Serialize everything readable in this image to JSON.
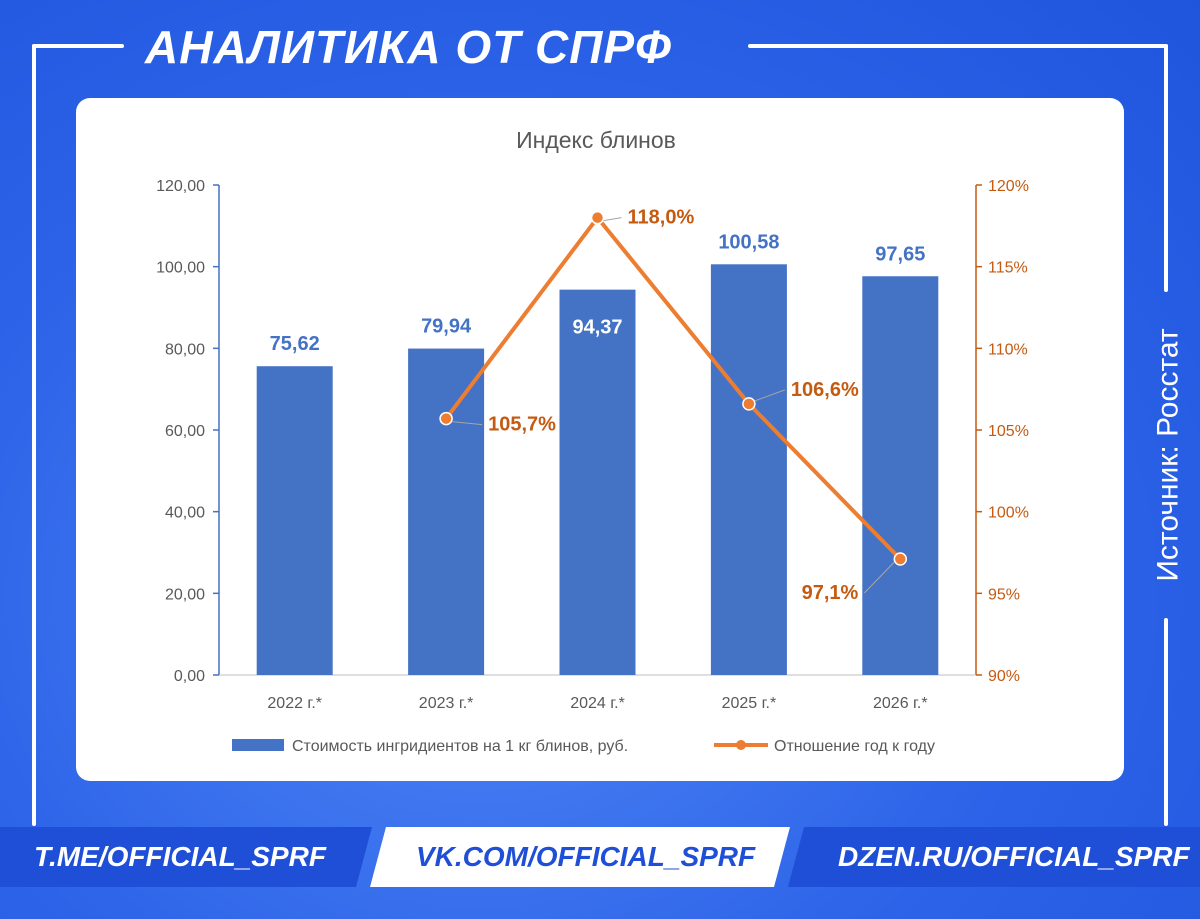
{
  "header": {
    "title": "АНАЛИТИКА ОТ СПРФ"
  },
  "source_label": "Источник: Росстат",
  "footer": {
    "links": [
      "T.ME/OFFICIAL_SPRF",
      "VK.COM/OFFICIAL_SPRF",
      "DZEN.RU/OFFICIAL_SPRF"
    ]
  },
  "colors": {
    "background": "#2c63e8",
    "bar": "#4472c4",
    "line": "#ed7d31",
    "bar_label": "#4472c4",
    "line_label": "#c55a11",
    "axis_left": "#4472c4",
    "axis_right": "#c55a11"
  },
  "chart_data": {
    "type": "bar+line",
    "title": "Индекс блинов",
    "categories": [
      "2022 г.*",
      "2023 г.*",
      "2024 г.*",
      "2025 г.*",
      "2026 г.*"
    ],
    "series": [
      {
        "name": "Стоимость ингридиентов на 1 кг блинов, руб.",
        "type": "bar",
        "axis": "left",
        "values": [
          75.62,
          79.94,
          94.37,
          100.58,
          97.65
        ],
        "labels": [
          "75,62",
          "79,94",
          "94,37",
          "100,58",
          "97,65"
        ]
      },
      {
        "name": "Отношение год к году",
        "type": "line",
        "axis": "right",
        "values": [
          null,
          105.7,
          118.0,
          106.6,
          97.1
        ],
        "labels": [
          null,
          "105,7%",
          "118,0%",
          "106,6%",
          "97,1%"
        ]
      }
    ],
    "ylim_left": [
      0,
      120
    ],
    "yticks_left": [
      "0,00",
      "20,00",
      "40,00",
      "60,00",
      "80,00",
      "100,00",
      "120,00"
    ],
    "ylim_right": [
      90,
      120
    ],
    "yticks_right": [
      "90%",
      "95%",
      "100%",
      "105%",
      "110%",
      "115%",
      "120%"
    ],
    "grid": false,
    "legend": "bottom"
  }
}
